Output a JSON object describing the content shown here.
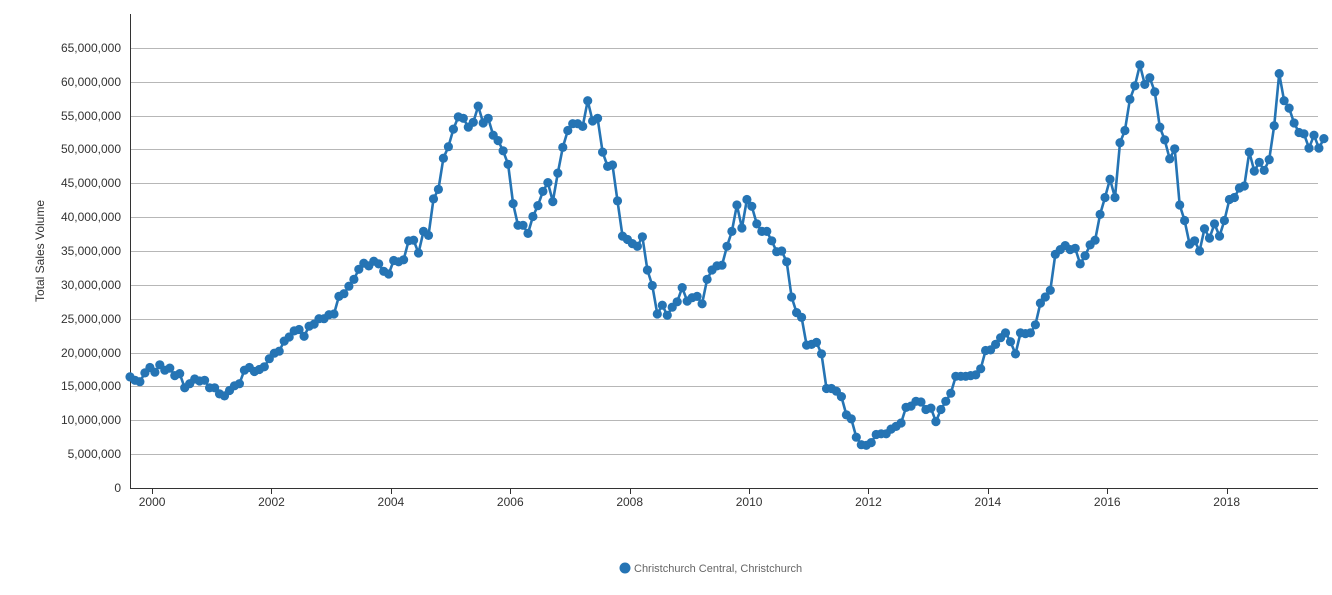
{
  "chart_data": {
    "type": "line",
    "title": "",
    "xlabel": "",
    "ylabel": "Total Sales Volume",
    "ylim": [
      0,
      70000000
    ],
    "yticks": [
      0,
      5000000,
      10000000,
      15000000,
      20000000,
      25000000,
      30000000,
      35000000,
      40000000,
      45000000,
      50000000,
      55000000,
      60000000,
      65000000
    ],
    "ytick_labels": [
      "0",
      "5,000,000",
      "10,000,000",
      "15,000,000",
      "20,000,000",
      "25,000,000",
      "30,000,000",
      "35,000,000",
      "40,000,000",
      "45,000,000",
      "50,000,000",
      "55,000,000",
      "60,000,000",
      "65,000,000"
    ],
    "xlim": [
      1999.63,
      2019.53
    ],
    "xticks": [
      2000,
      2002,
      2004,
      2006,
      2008,
      2010,
      2012,
      2014,
      2016,
      2018
    ],
    "xtick_labels": [
      "2000",
      "2002",
      "2004",
      "2006",
      "2008",
      "2010",
      "2012",
      "2014",
      "2016",
      "2018"
    ],
    "grid": true,
    "legend_position": "bottom-center",
    "colors": {
      "series": "#2574b4",
      "grid": "#b7b7b7",
      "axis": "#333333"
    },
    "series": [
      {
        "name": "Christchurch Central, Christchurch",
        "color": "#2574b4",
        "start_year": 1999.63,
        "step_years": 0.08333,
        "values": [
          16400000,
          15900000,
          15700000,
          17000000,
          17800000,
          17100000,
          18200000,
          17400000,
          17700000,
          16600000,
          16900000,
          14800000,
          15400000,
          16100000,
          15800000,
          15900000,
          14800000,
          14800000,
          13900000,
          13600000,
          14400000,
          15100000,
          15400000,
          17400000,
          17800000,
          17200000,
          17500000,
          17900000,
          19100000,
          19900000,
          20200000,
          21700000,
          22300000,
          23200000,
          23400000,
          22400000,
          23900000,
          24200000,
          25000000,
          25000000,
          25600000,
          25700000,
          28300000,
          28700000,
          29800000,
          30800000,
          32300000,
          33200000,
          32800000,
          33500000,
          33100000,
          32000000,
          31600000,
          33600000,
          33400000,
          33700000,
          36500000,
          36600000,
          34700000,
          37900000,
          37300000,
          42700000,
          44100000,
          48700000,
          50400000,
          53000000,
          54800000,
          54600000,
          53300000,
          54000000,
          56400000,
          53900000,
          54600000,
          52100000,
          51300000,
          49800000,
          47800000,
          42000000,
          38800000,
          38800000,
          37600000,
          40100000,
          41700000,
          43800000,
          45100000,
          42300000,
          46500000,
          50300000,
          52800000,
          53800000,
          53800000,
          53400000,
          57200000,
          54200000,
          54600000,
          49600000,
          47500000,
          47700000,
          42400000,
          37200000,
          36700000,
          36100000,
          35700000,
          37100000,
          32200000,
          29900000,
          25700000,
          27000000,
          25500000,
          26700000,
          27500000,
          29600000,
          27600000,
          28100000,
          28300000,
          27200000,
          30800000,
          32200000,
          32800000,
          32900000,
          35700000,
          37900000,
          41800000,
          38400000,
          42600000,
          41600000,
          39000000,
          37900000,
          37900000,
          36500000,
          34900000,
          35000000,
          33400000,
          28200000,
          25900000,
          25200000,
          21100000,
          21200000,
          21500000,
          19800000,
          14700000,
          14700000,
          14300000,
          13500000,
          10800000,
          10200000,
          7500000,
          6400000,
          6300000,
          6700000,
          7900000,
          8000000,
          8000000,
          8700000,
          9100000,
          9600000,
          11900000,
          12100000,
          12800000,
          12700000,
          11600000,
          11800000,
          9800000,
          11600000,
          12800000,
          14000000,
          16500000,
          16500000,
          16500000,
          16600000,
          16700000,
          17600000,
          20300000,
          20400000,
          21200000,
          22200000,
          22900000,
          21600000,
          19800000,
          22900000,
          22800000,
          22900000,
          24100000,
          27300000,
          28200000,
          29200000,
          34500000,
          35200000,
          35800000,
          35200000,
          35400000,
          33100000,
          34300000,
          35900000,
          36600000,
          40400000,
          42900000,
          45600000,
          42900000,
          51000000,
          52800000,
          57400000,
          59400000,
          62500000,
          59600000,
          60600000,
          58500000,
          53300000,
          51400000,
          48600000,
          50100000,
          41800000,
          39500000,
          36000000,
          36500000,
          35000000,
          38300000,
          36900000,
          39000000,
          37200000,
          39500000,
          42600000,
          42900000,
          44300000,
          44600000,
          49600000,
          46800000,
          48100000,
          46900000,
          48500000,
          53500000,
          61200000,
          57200000,
          56100000,
          53900000,
          52500000,
          52300000,
          50200000,
          52100000,
          50200000,
          51600000
        ]
      }
    ]
  }
}
